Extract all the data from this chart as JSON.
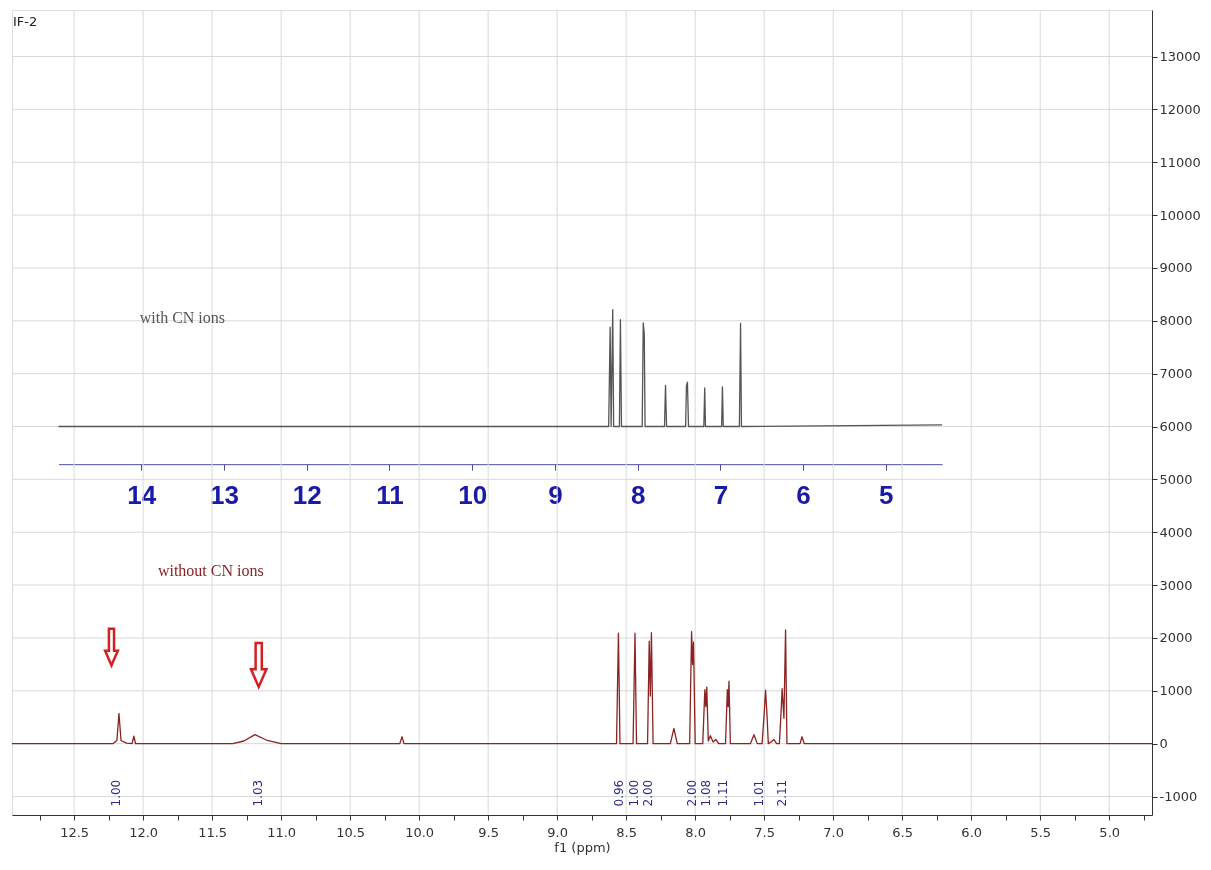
{
  "chart_data": {
    "type": "line",
    "title": "IF-2",
    "xlabel": "f1 (ppm)",
    "xlim": [
      12.95,
      4.69
    ],
    "ylim": [
      -1350,
      13880
    ],
    "xticks": [
      {
        "value": 12.75,
        "label": null
      },
      12.5,
      {
        "value": 12.25,
        "label": null
      },
      {
        "value": 12,
        "label": "12.0"
      },
      {
        "value": 11.75,
        "label": null
      },
      11.5,
      {
        "value": 11.25,
        "label": null
      },
      {
        "value": 11,
        "label": "11.0"
      },
      {
        "value": 10.75,
        "label": null
      },
      10.5,
      {
        "value": 10.25,
        "label": null
      },
      {
        "value": 10,
        "label": "10.0"
      },
      {
        "value": 9.75,
        "label": null
      },
      9.5,
      {
        "value": 9.25,
        "label": null
      },
      {
        "value": 9,
        "label": "9.0"
      },
      {
        "value": 8.75,
        "label": null
      },
      8.5,
      {
        "value": 8.25,
        "label": null
      },
      {
        "value": 8,
        "label": "8.0"
      },
      {
        "value": 7.75,
        "label": null
      },
      7.5,
      {
        "value": 7.25,
        "label": null
      },
      {
        "value": 7,
        "label": "7.0"
      },
      {
        "value": 6.75,
        "label": null
      },
      6.5,
      {
        "value": 6.25,
        "label": null
      },
      {
        "value": 6,
        "label": "6.0"
      },
      {
        "value": 5.75,
        "label": null
      },
      5.5,
      {
        "value": 5.25,
        "label": null
      },
      {
        "value": 5,
        "label": "5.0"
      },
      {
        "value": 4.75,
        "label": null
      }
    ],
    "yticks": [
      -1000,
      0,
      1000,
      2000,
      3000,
      4000,
      5000,
      6000,
      7000,
      8000,
      9000,
      10000,
      11000,
      12000,
      13000
    ],
    "x2lim": [
      15.0,
      4.32
    ],
    "x2ticks": [
      14,
      13,
      12,
      11,
      10,
      9,
      8,
      7,
      6,
      5
    ],
    "grid": true,
    "legend": false,
    "marker": "none",
    "line_style": "solid",
    "series": [
      {
        "name": "with CN ions",
        "color": "#555555",
        "axis": "x2",
        "x": [
          15.0,
          8.35,
          8.332,
          8.32,
          8.301,
          8.29,
          8.22,
          8.208,
          8.195,
          7.945,
          7.932,
          7.92,
          7.91,
          7.675,
          7.663,
          7.65,
          7.42,
          7.41,
          7.398,
          7.385,
          7.2,
          7.189,
          7.18,
          6.985,
          6.975,
          6.965,
          6.77,
          6.756,
          6.745,
          4.32
        ],
        "values": [
          6000,
          6000,
          7880,
          6000,
          8210,
          6000,
          6000,
          8020,
          6000,
          6000,
          7960,
          7760,
          6000,
          6000,
          6780,
          6000,
          6000,
          6770,
          6840,
          6000,
          6000,
          6730,
          6000,
          6000,
          6750,
          6000,
          6000,
          7950,
          6000,
          6030
        ]
      },
      {
        "name": "without CN ions",
        "color": "#8b2323",
        "x": [
          12.95,
          12.22,
          12.19,
          12.175,
          12.16,
          12.12,
          12.08,
          12.067,
          12.055,
          11.35,
          11.27,
          11.19,
          11.1,
          11.0,
          10.14,
          10.124,
          10.11,
          8.57,
          8.556,
          8.545,
          8.45,
          8.436,
          8.425,
          8.345,
          8.333,
          8.325,
          8.317,
          8.305,
          8.18,
          8.154,
          8.13,
          8.04,
          8.026,
          8.019,
          8.012,
          8.0,
          7.945,
          7.93,
          7.923,
          7.916,
          7.905,
          7.89,
          7.87,
          7.85,
          7.83,
          7.78,
          7.767,
          7.761,
          7.755,
          7.745,
          7.6,
          7.574,
          7.55,
          7.515,
          7.5,
          7.49,
          7.48,
          7.47,
          7.45,
          7.43,
          7.41,
          7.39,
          7.377,
          7.37,
          7.357,
          7.345,
          7.335,
          7.24,
          7.226,
          7.21,
          4.69
        ],
        "values": [
          0,
          0,
          60,
          570,
          60,
          10,
          0,
          140,
          0,
          0,
          50,
          170,
          60,
          0,
          0,
          130,
          0,
          0,
          2090,
          0,
          0,
          2090,
          0,
          0,
          1940,
          900,
          2100,
          0,
          0,
          290,
          0,
          0,
          2120,
          1500,
          1920,
          0,
          0,
          1020,
          700,
          1070,
          50,
          150,
          30,
          80,
          0,
          0,
          1020,
          700,
          1180,
          0,
          0,
          170,
          0,
          0,
          570,
          1010,
          560,
          0,
          30,
          80,
          0,
          0,
          630,
          1040,
          480,
          2150,
          0,
          0,
          130,
          0,
          0
        ]
      }
    ],
    "annotations": [
      "1.00",
      "1.03",
      "0.96",
      "1.00",
      "2.00",
      "2.00",
      "1.08",
      "1.11",
      "1.01",
      "2.11"
    ]
  }
}
